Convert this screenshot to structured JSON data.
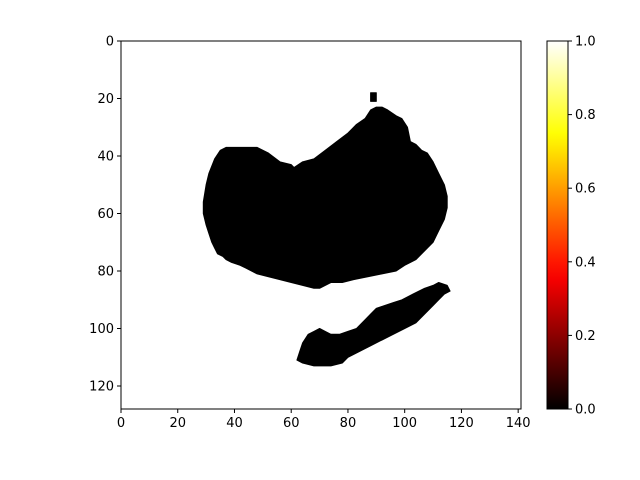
{
  "chart_data": {
    "type": "heatmap",
    "title": "",
    "xlabel": "",
    "ylabel": "",
    "image_shape": [
      128,
      141
    ],
    "xlim": [
      0,
      141
    ],
    "ylim": [
      128,
      0
    ],
    "x_ticks": [
      0,
      20,
      40,
      60,
      80,
      100,
      120,
      140
    ],
    "y_ticks": [
      0,
      20,
      40,
      60,
      80,
      100,
      120
    ],
    "x_tick_labels": [
      "0",
      "20",
      "40",
      "60",
      "80",
      "100",
      "120",
      "140"
    ],
    "y_tick_labels": [
      "0",
      "20",
      "40",
      "60",
      "80",
      "100",
      "120"
    ],
    "colormap": "hot",
    "colormap_stops": [
      "#000000",
      "#e60000",
      "#ff2e00",
      "#ffd200",
      "#ffff00",
      "#ffffff"
    ],
    "value_range": [
      0,
      1
    ],
    "background_value": 1.0,
    "region_value": 0.0,
    "colorbar": {
      "ticks": [
        0.0,
        0.2,
        0.4,
        0.6,
        0.8,
        1.0
      ],
      "tick_labels": [
        "0.0",
        "0.2",
        "0.4",
        "0.6",
        "0.8",
        "1.0"
      ]
    },
    "regions": [
      {
        "name": "upper blob",
        "value": 0.0,
        "outline": [
          [
            29,
            56
          ],
          [
            30,
            50
          ],
          [
            31,
            46
          ],
          [
            33,
            41
          ],
          [
            35,
            38
          ],
          [
            37,
            37
          ],
          [
            42,
            37
          ],
          [
            48,
            37
          ],
          [
            52,
            39
          ],
          [
            56,
            42
          ],
          [
            60,
            43
          ],
          [
            61,
            44
          ],
          [
            64,
            42
          ],
          [
            68,
            41
          ],
          [
            72,
            38
          ],
          [
            76,
            35
          ],
          [
            80,
            32
          ],
          [
            83,
            29
          ],
          [
            86,
            27
          ],
          [
            88,
            24
          ],
          [
            90,
            23
          ],
          [
            92,
            23
          ],
          [
            94,
            24
          ],
          [
            97,
            26
          ],
          [
            99,
            27
          ],
          [
            101,
            30
          ],
          [
            102,
            35
          ],
          [
            104,
            36
          ],
          [
            106,
            38
          ],
          [
            108,
            39
          ],
          [
            110,
            42
          ],
          [
            112,
            46
          ],
          [
            114,
            50
          ],
          [
            115,
            54
          ],
          [
            115,
            58
          ],
          [
            114,
            62
          ],
          [
            112,
            66
          ],
          [
            110,
            70
          ],
          [
            108,
            72
          ],
          [
            106,
            74
          ],
          [
            104,
            76
          ],
          [
            102,
            77
          ],
          [
            100,
            78
          ],
          [
            97,
            80
          ],
          [
            92,
            81
          ],
          [
            87,
            82
          ],
          [
            82,
            83
          ],
          [
            78,
            84
          ],
          [
            74,
            84
          ],
          [
            70,
            86
          ],
          [
            68,
            86
          ],
          [
            64,
            85
          ],
          [
            60,
            84
          ],
          [
            56,
            83
          ],
          [
            52,
            82
          ],
          [
            48,
            81
          ],
          [
            44,
            79
          ],
          [
            42,
            78
          ],
          [
            39,
            77
          ],
          [
            37,
            76
          ],
          [
            36,
            75
          ],
          [
            34,
            74
          ],
          [
            33,
            72
          ],
          [
            32,
            70
          ],
          [
            31,
            67
          ],
          [
            30,
            64
          ],
          [
            29,
            60
          ]
        ]
      },
      {
        "name": "fleck",
        "value": 0.0,
        "outline": [
          [
            88,
            18
          ],
          [
            90,
            18
          ],
          [
            90,
            21
          ],
          [
            88,
            21
          ]
        ]
      },
      {
        "name": "lower blob",
        "value": 0.0,
        "outline": [
          [
            63,
            108
          ],
          [
            64,
            105
          ],
          [
            66,
            102
          ],
          [
            68,
            101
          ],
          [
            70,
            100
          ],
          [
            72,
            101
          ],
          [
            74,
            102
          ],
          [
            77,
            102
          ],
          [
            80,
            101
          ],
          [
            83,
            100
          ],
          [
            86,
            97
          ],
          [
            88,
            95
          ],
          [
            90,
            93
          ],
          [
            93,
            92
          ],
          [
            96,
            91
          ],
          [
            99,
            90
          ],
          [
            103,
            88
          ],
          [
            107,
            86
          ],
          [
            110,
            85
          ],
          [
            112,
            84
          ],
          [
            115,
            85
          ],
          [
            116,
            87
          ],
          [
            114,
            88
          ],
          [
            112,
            90
          ],
          [
            110,
            92
          ],
          [
            108,
            94
          ],
          [
            106,
            96
          ],
          [
            104,
            98
          ],
          [
            100,
            100
          ],
          [
            96,
            102
          ],
          [
            92,
            104
          ],
          [
            88,
            106
          ],
          [
            84,
            108
          ],
          [
            80,
            110
          ],
          [
            78,
            112
          ],
          [
            74,
            113
          ],
          [
            68,
            113
          ],
          [
            64,
            112
          ],
          [
            62,
            111
          ]
        ]
      }
    ]
  }
}
